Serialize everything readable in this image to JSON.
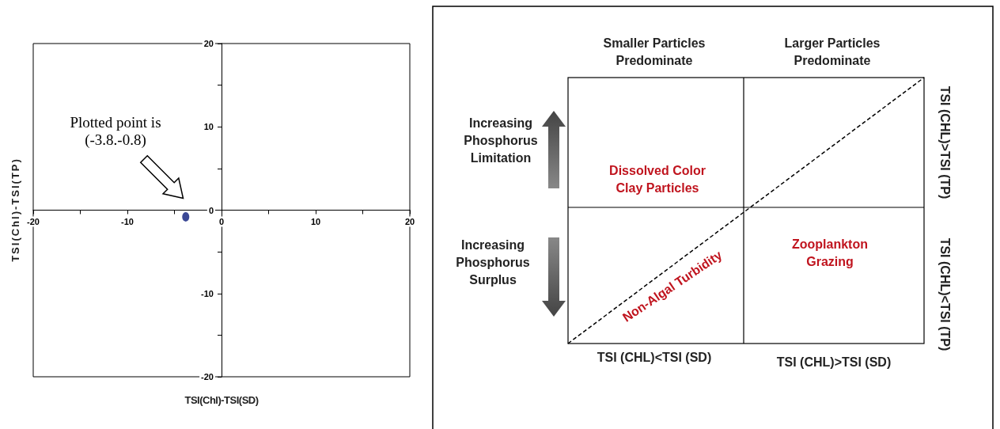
{
  "chart_data": [
    {
      "type": "scatter",
      "x": [
        -3.8
      ],
      "values": [
        -0.8
      ],
      "color": "#0a1a7a",
      "marker": "circle",
      "xlim": [
        -20,
        20
      ],
      "ylim": [
        -20,
        20
      ],
      "xticks": [
        -20,
        {
          "value": -15,
          "label": null
        },
        -10,
        {
          "value": -5,
          "label": null
        },
        0,
        {
          "value": 5,
          "label": null
        },
        10,
        {
          "value": 15,
          "label": null
        },
        20
      ],
      "yticks": [
        -20,
        {
          "value": -15,
          "label": null
        },
        -10,
        {
          "value": -5,
          "label": null
        },
        0,
        {
          "value": 5,
          "label": null
        },
        10,
        {
          "value": 15,
          "label": null
        },
        20
      ],
      "xlabel": "TSI(Chl)-TSI(SD)",
      "ylabel": "TSI(Chl)-TSI(TP)",
      "annotations": [
        "Plotted point is (-3.8.-0.8)"
      ]
    },
    {
      "type": "other",
      "annotations": [
        "Smaller Particles Predominate",
        "Larger Particles Predominate",
        "Increasing Phosphorus Limitation",
        "Increasing Phosphorus Surplus",
        "Dissolved Color Clay Particles",
        "Zooplankton Grazing",
        "Non-Algal Turbidity",
        "TSI (CHL)<TSI (SD)",
        "TSI (CHL)>TSI (SD)",
        "TSI (CHL)>TSI (TP)",
        "TSI (CHL)<TSI (TP)"
      ]
    }
  ]
}
